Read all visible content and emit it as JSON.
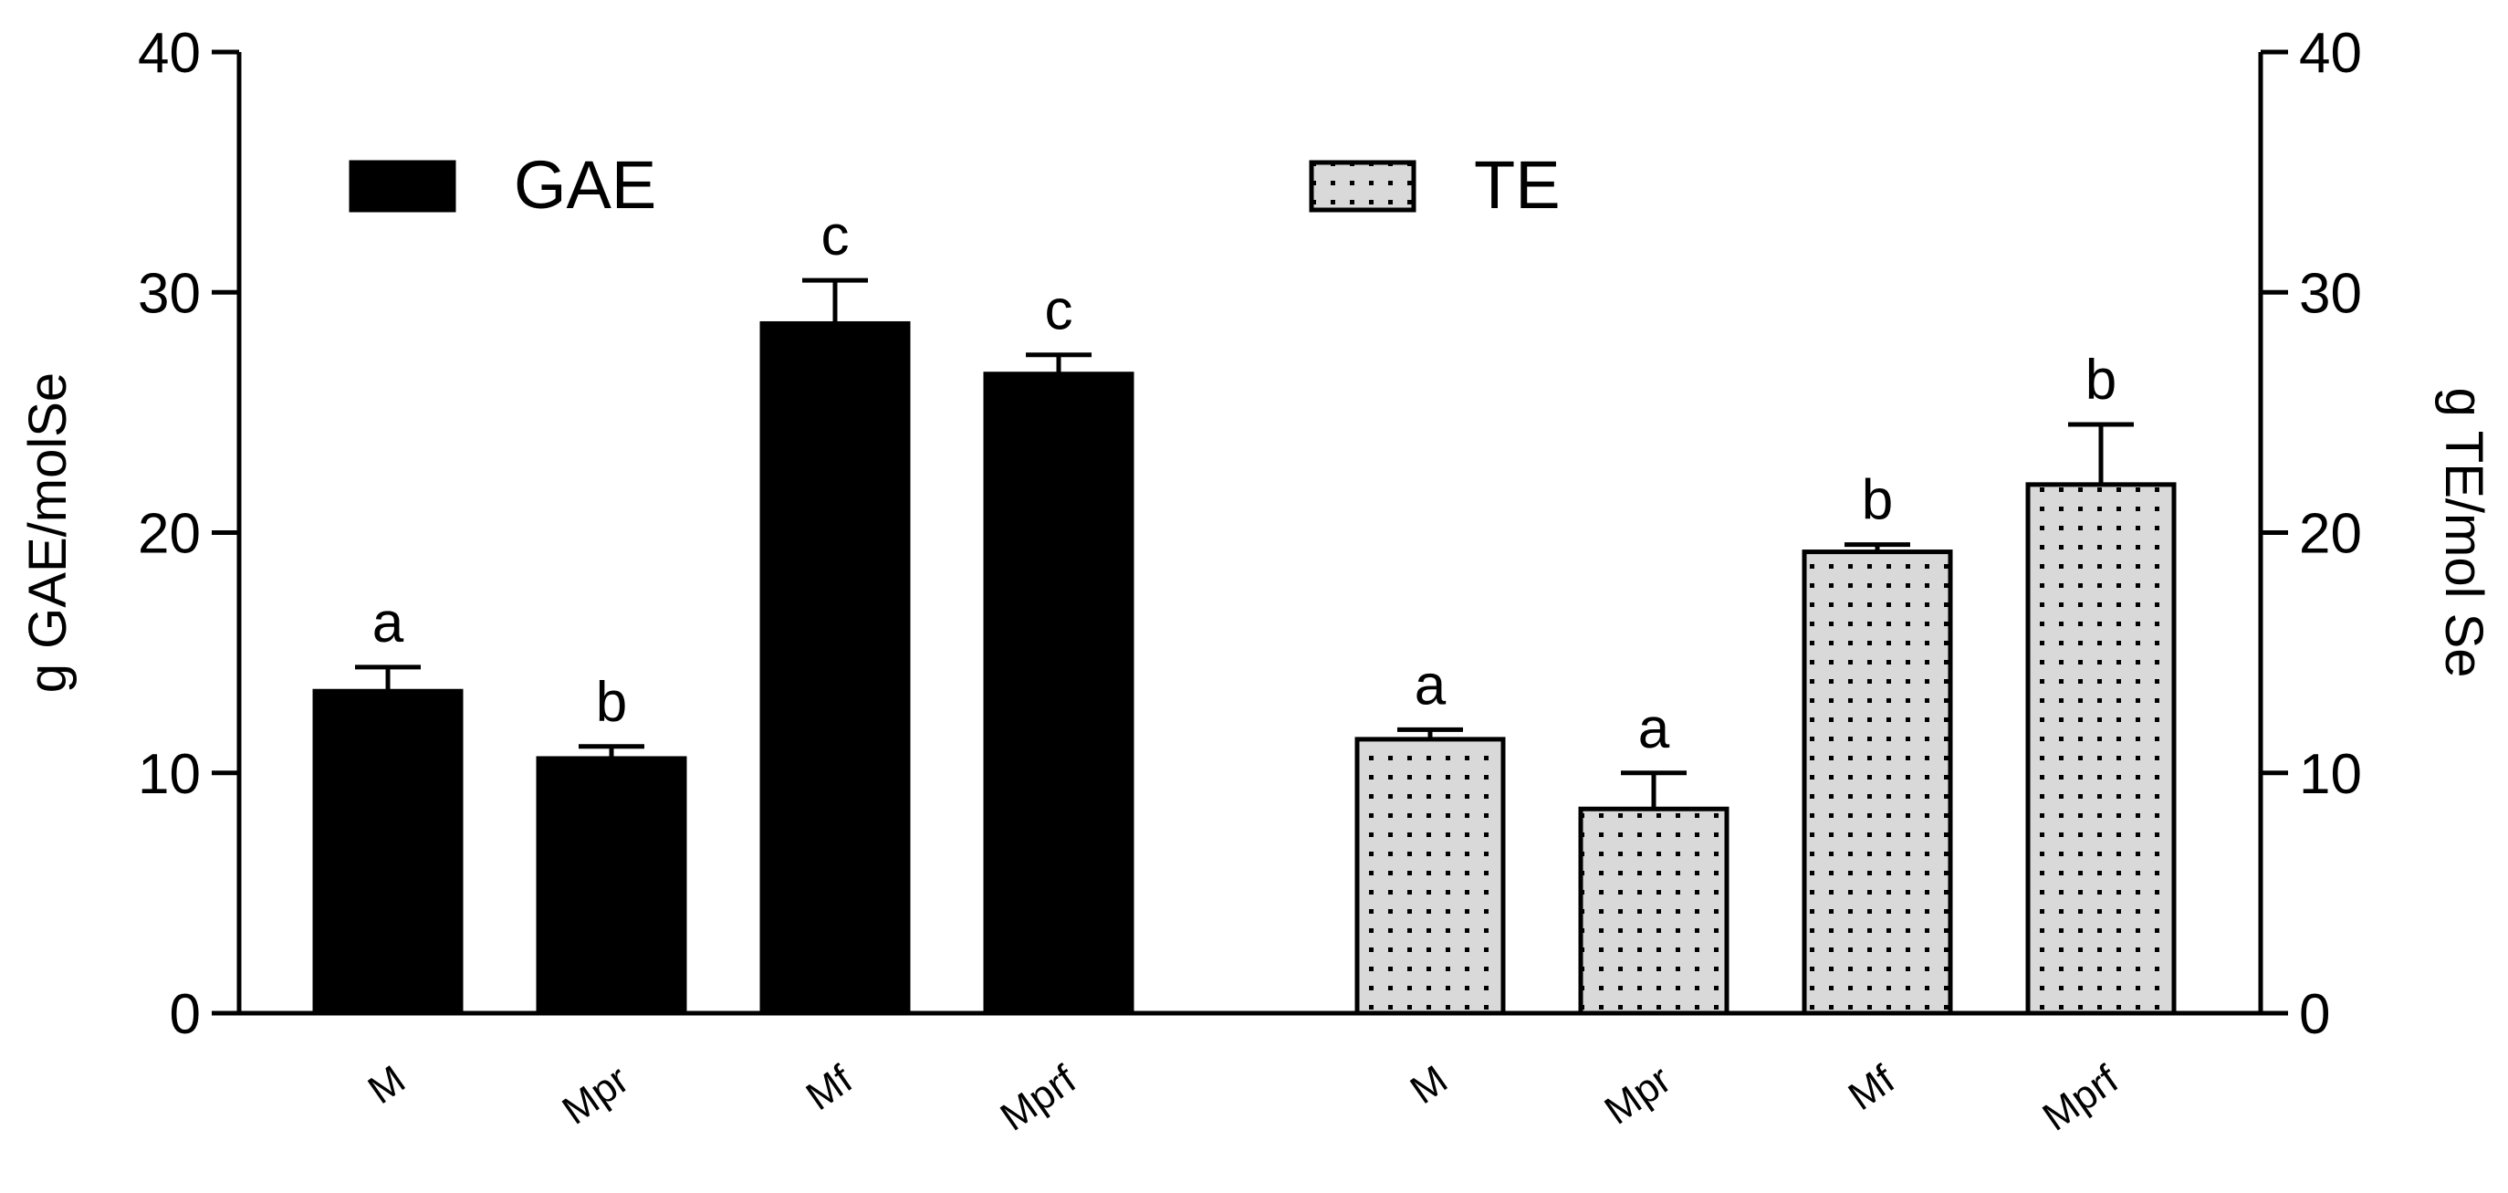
{
  "chart_data": {
    "type": "bar",
    "groups": [
      {
        "name": "GAE",
        "axis": "left",
        "categories": [
          "M",
          "Mpr",
          "Mf",
          "Mprf"
        ],
        "values": [
          13.4,
          10.6,
          28.7,
          26.6
        ],
        "errors": [
          1.0,
          0.5,
          1.8,
          0.8
        ],
        "significance": [
          "a",
          "b",
          "c",
          "c"
        ],
        "pattern": "solid",
        "color": "#000000"
      },
      {
        "name": "TE",
        "axis": "right",
        "categories": [
          "M",
          "Mpr",
          "Mf",
          "Mprf"
        ],
        "values": [
          11.4,
          8.5,
          19.2,
          22.0
        ],
        "errors": [
          0.4,
          1.5,
          0.3,
          2.5
        ],
        "significance": [
          "a",
          "a",
          "b",
          "b"
        ],
        "pattern": "dotted",
        "color": "#d9d9d9"
      }
    ],
    "ylabel_left": "g GAE/molSe",
    "ylabel_right": "g TE/mol Se",
    "ylim": [
      0,
      40
    ],
    "yticks": [
      0,
      10,
      20,
      30,
      40
    ],
    "legend": [
      "GAE",
      "TE"
    ],
    "legend_placement": "top",
    "grid": false
  }
}
